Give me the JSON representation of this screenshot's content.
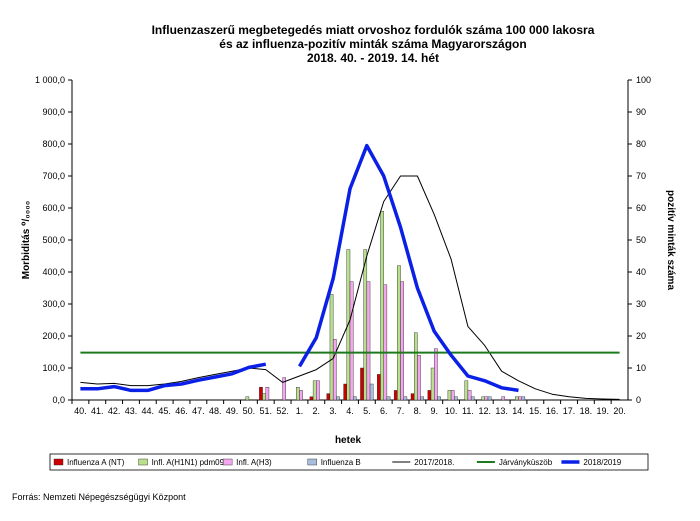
{
  "chart_data": {
    "type": "bar",
    "title": [
      "Influenzaszerű megbetegedés miatt orvoshoz fordulók száma 100 000 lakosra",
      "és az influenza-pozitív minták száma Magyarországon",
      "2018. 40. - 2019. 14. hét"
    ],
    "xlabel": "hetek",
    "ylabel_left": "Morbiditás ⁰/₀₀₀₀",
    "ylabel_right": "pozitív minták száma",
    "ylim_left": [
      0,
      1000
    ],
    "ylim_right": [
      0,
      100
    ],
    "yticks_left": [
      "0,0",
      "100,0",
      "200,0",
      "300,0",
      "400,0",
      "500,0",
      "600,0",
      "700,0",
      "800,0",
      "900,0",
      "1 000,0"
    ],
    "yticks_right": [
      "0",
      "10",
      "20",
      "30",
      "40",
      "50",
      "60",
      "70",
      "80",
      "90",
      "100"
    ],
    "categories": [
      "40.",
      "41.",
      "42.",
      "43.",
      "44.",
      "45.",
      "46.",
      "47.",
      "48.",
      "49.",
      "50.",
      "51.",
      "52.",
      "1.",
      "2.",
      "3.",
      "4.",
      "5.",
      "6.",
      "7.",
      "8.",
      "9.",
      "10.",
      "11.",
      "12.",
      "13.",
      "14.",
      "15.",
      "16.",
      "17.",
      "18.",
      "19.",
      "20."
    ],
    "grid": false,
    "legend_position": "bottom",
    "bar_series": [
      {
        "name": "Influenza A (NT)",
        "color": "#cc0000",
        "values": [
          0,
          0,
          0,
          0,
          0,
          0,
          0,
          0,
          0,
          0,
          0,
          4,
          0,
          0,
          1,
          2,
          5,
          10,
          8,
          3,
          2,
          3,
          0,
          0,
          0,
          0,
          0,
          null,
          null,
          null,
          null,
          null,
          null
        ]
      },
      {
        "name": "Infl. A(H1N1) pdm09",
        "color": "#b8e08c",
        "values": [
          0,
          0,
          0,
          0,
          0,
          0,
          0,
          0,
          0,
          0,
          1,
          2,
          0,
          4,
          6,
          33,
          47,
          47,
          59,
          42,
          21,
          10,
          3,
          6,
          1,
          0,
          1,
          null,
          null,
          null,
          null,
          null,
          null
        ]
      },
      {
        "name": "Infl. A(H3)",
        "color": "#f5a6f0",
        "values": [
          0,
          0,
          0,
          0,
          0,
          0,
          0,
          0,
          0,
          0,
          0,
          4,
          7,
          3,
          6,
          19,
          37,
          37,
          36,
          37,
          14,
          16,
          3,
          3,
          1,
          1,
          1,
          null,
          null,
          null,
          null,
          null,
          null
        ]
      },
      {
        "name": "Influenza B",
        "color": "#a8bedc",
        "values": [
          0,
          0,
          0,
          0,
          0,
          0,
          0,
          0,
          0,
          0,
          0,
          0,
          0,
          0,
          0,
          1,
          1,
          5,
          1,
          1,
          1,
          1,
          1,
          1,
          1,
          0,
          1,
          null,
          null,
          null,
          null,
          null,
          null
        ]
      }
    ],
    "line_series": [
      {
        "name": "2017/2018.",
        "color": "#000000",
        "values": [
          55,
          50,
          52,
          45,
          45,
          50,
          58,
          70,
          80,
          90,
          100,
          95,
          55,
          75,
          95,
          130,
          250,
          450,
          620,
          700,
          700,
          580,
          440,
          230,
          170,
          90,
          60,
          35,
          18,
          10,
          5,
          3,
          2
        ]
      },
      {
        "name": "Járványküszöb",
        "color": "#1e7a1e",
        "values": [
          148,
          148,
          148,
          148,
          148,
          148,
          148,
          148,
          148,
          148,
          148,
          148,
          148,
          148,
          148,
          148,
          148,
          148,
          148,
          148,
          148,
          148,
          148,
          148,
          148,
          148,
          148,
          148,
          148,
          148,
          148,
          148,
          148
        ]
      },
      {
        "name": "2018/2019",
        "color": "#0a20e6",
        "values": [
          35,
          35,
          42,
          30,
          30,
          45,
          50,
          62,
          72,
          82,
          102,
          112,
          null,
          105,
          195,
          380,
          660,
          795,
          700,
          540,
          350,
          215,
          140,
          75,
          60,
          38,
          30,
          null,
          null,
          null,
          null,
          null,
          null
        ]
      }
    ]
  },
  "source": "Forrás: Nemzeti Népegészségügyi Központ"
}
